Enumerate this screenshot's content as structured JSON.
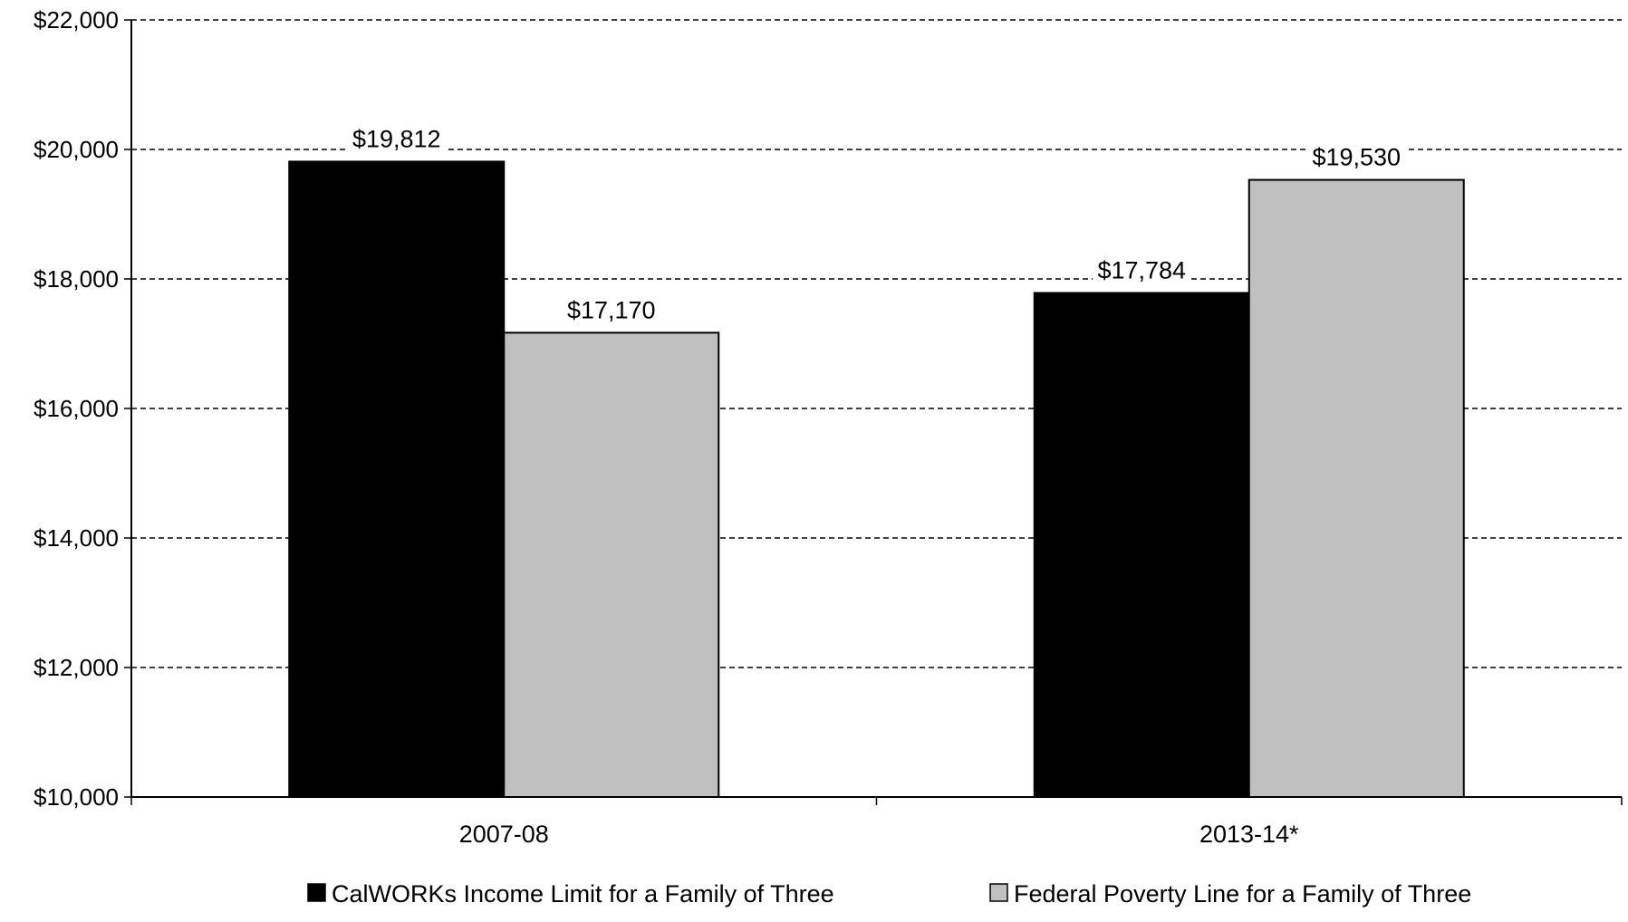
{
  "chart_data": {
    "type": "bar",
    "categories": [
      "2007-08",
      "2013-14*"
    ],
    "series": [
      {
        "name": "CalWORKs Income Limit for a Family of Three",
        "values": [
          19812,
          17784
        ],
        "value_labels": [
          "$19,812",
          "$17,784"
        ],
        "color": "#000000"
      },
      {
        "name": "Federal Poverty Line for a Family of Three",
        "values": [
          17170,
          19530
        ],
        "value_labels": [
          "$17,170",
          "$19,530"
        ],
        "color": "#c0c0c0"
      }
    ],
    "ylim": [
      10000,
      22000
    ],
    "yticks": [
      10000,
      12000,
      14000,
      16000,
      18000,
      20000,
      22000
    ],
    "ytick_labels": [
      "$10,000",
      "$12,000",
      "$14,000",
      "$16,000",
      "$18,000",
      "$20,000",
      "$22,000"
    ],
    "title": "",
    "xlabel": "",
    "ylabel": "",
    "grid": true,
    "grid_style": "dashed",
    "legend_position": "bottom"
  }
}
